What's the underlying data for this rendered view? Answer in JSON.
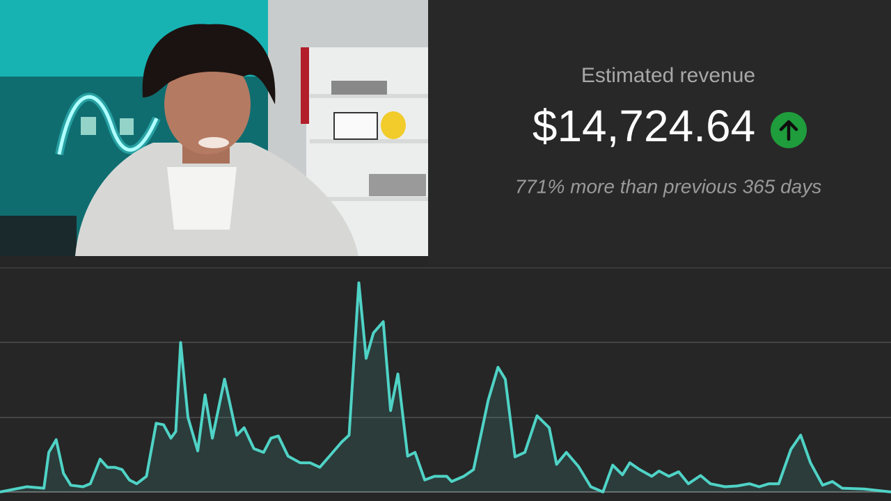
{
  "header": {
    "title": "Estimated revenue",
    "amount": "$14,724.64",
    "comparison": "771% more than previous 365 days"
  },
  "chart_data": {
    "type": "area",
    "color": "#4fd3c6",
    "x": [
      0,
      11,
      18,
      20,
      23,
      26,
      29,
      34,
      37,
      41,
      44,
      47,
      50,
      53,
      56,
      60,
      64,
      67,
      70,
      72,
      74,
      77,
      81,
      84,
      87,
      92,
      97,
      100,
      104,
      108,
      111,
      114,
      118,
      123,
      127,
      131,
      135,
      140,
      143,
      147,
      150,
      153,
      157,
      160,
      163,
      167,
      170,
      174,
      178,
      183,
      185,
      190,
      194,
      200,
      204,
      207,
      211,
      215,
      220,
      225,
      228,
      232,
      237,
      242,
      247,
      251,
      255,
      258,
      262,
      267,
      270,
      274,
      278,
      282,
      287,
      291,
      297,
      302,
      307,
      311,
      315,
      319,
      324,
      328,
      332,
      337,
      341,
      345,
      354,
      365
    ],
    "values": [
      0,
      0.07,
      0.05,
      0.53,
      0.7,
      0.25,
      0.09,
      0.07,
      0.11,
      0.44,
      0.33,
      0.33,
      0.3,
      0.16,
      0.11,
      0.21,
      0.92,
      0.9,
      0.72,
      0.81,
      2.0,
      1.0,
      0.55,
      1.3,
      0.72,
      1.51,
      0.76,
      0.86,
      0.58,
      0.53,
      0.72,
      0.75,
      0.48,
      0.39,
      0.39,
      0.33,
      0.48,
      0.67,
      0.76,
      2.8,
      1.79,
      2.13,
      2.28,
      1.09,
      1.58,
      0.48,
      0.53,
      0.16,
      0.21,
      0.21,
      0.14,
      0.21,
      0.3,
      1.23,
      1.67,
      1.51,
      0.47,
      0.53,
      1.02,
      0.86,
      0.37,
      0.53,
      0.34,
      0.07,
      0,
      0.36,
      0.23,
      0.39,
      0.3,
      0.21,
      0.28,
      0.21,
      0.27,
      0.11,
      0.22,
      0.11,
      0.07,
      0.08,
      0.11,
      0.07,
      0.11,
      0.11,
      0.57,
      0.76,
      0.39,
      0.09,
      0.14,
      0.05,
      0.04,
      0
    ],
    "xlim": [
      0,
      365
    ],
    "ylim": [
      0,
      3
    ]
  }
}
